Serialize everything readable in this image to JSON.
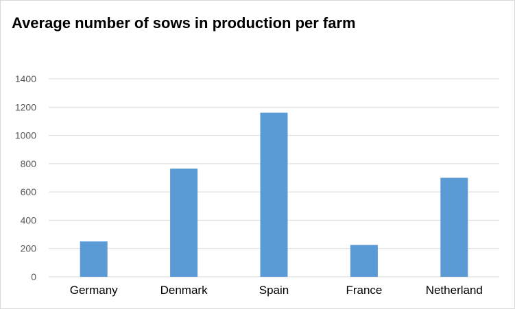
{
  "chart_data": {
    "type": "bar",
    "title": "Average number of sows in production per farm",
    "xlabel": "",
    "ylabel": "",
    "categories": [
      "Germany",
      "Denmark",
      "Spain",
      "France",
      "Netherland"
    ],
    "series": [
      {
        "values": [
          250,
          765,
          1160,
          225,
          700
        ]
      }
    ],
    "ylim": [
      0,
      1400
    ],
    "yticks": [
      0,
      200,
      400,
      600,
      800,
      1000,
      1200,
      1400
    ],
    "grid": true,
    "legend": "none",
    "bar_color": "#5b9bd5",
    "grid_color": "#d9d9d9"
  }
}
